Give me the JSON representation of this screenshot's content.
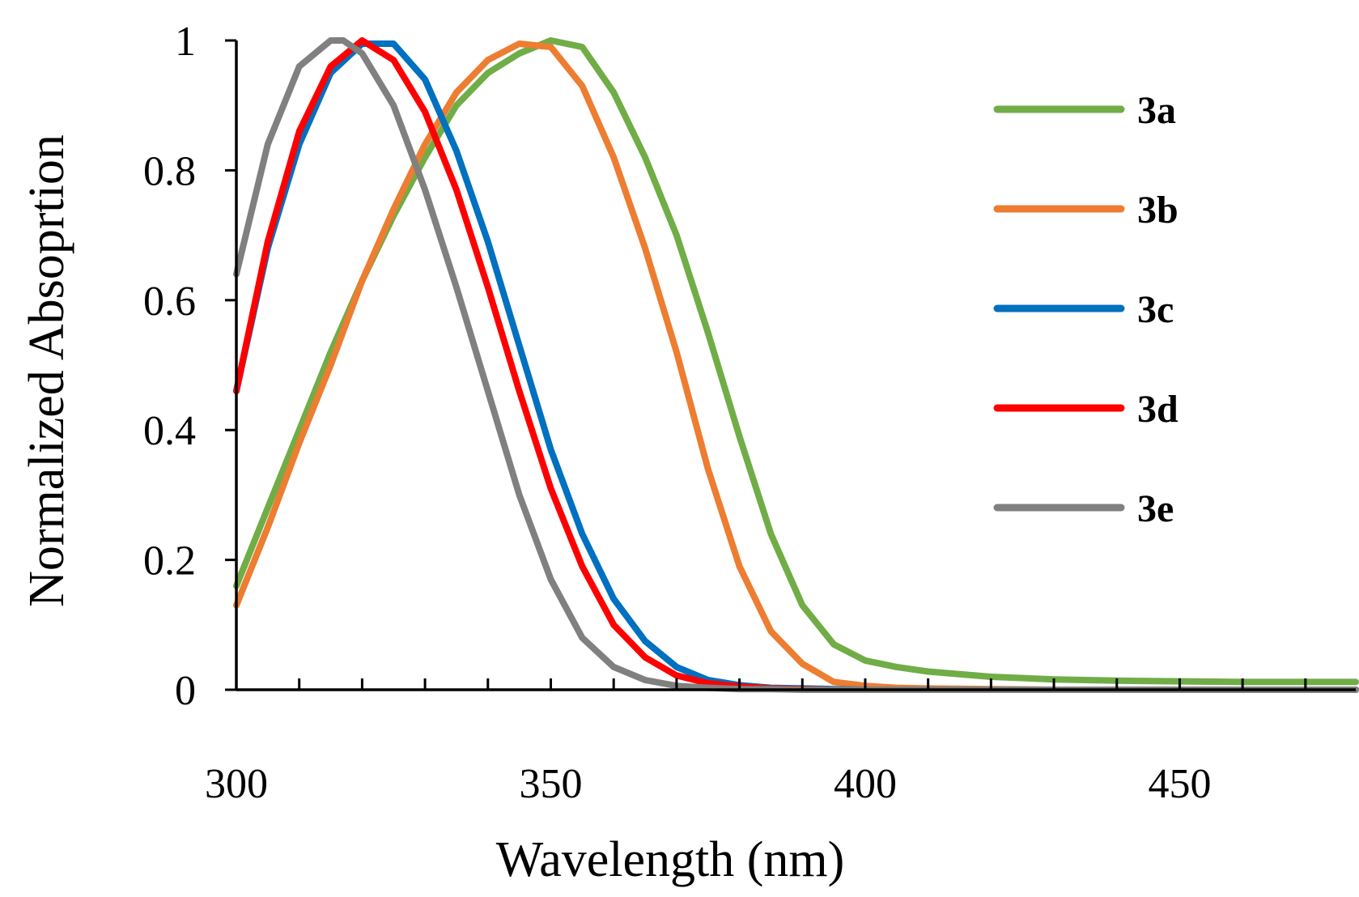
{
  "chart_data": {
    "type": "line",
    "title": "",
    "xlabel": "Wavelength (nm)",
    "ylabel": "Normalized Absoprtion",
    "xlim": [
      300,
      478
    ],
    "ylim": [
      0,
      1
    ],
    "x_ticks": [
      300,
      350,
      400,
      450
    ],
    "x_minor_step": 10,
    "y_ticks": [
      0,
      0.2,
      0.4,
      0.6,
      0.8,
      1
    ],
    "y_tick_labels": [
      "0",
      "0.2",
      "0.4",
      "0.6",
      "0.8",
      "1"
    ],
    "grid": false,
    "legend_position": "right",
    "series": [
      {
        "name": "3a",
        "color": "#70AD47",
        "x": [
          300,
          305,
          310,
          315,
          320,
          325,
          330,
          335,
          340,
          345,
          350,
          355,
          360,
          365,
          370,
          375,
          380,
          385,
          390,
          395,
          400,
          405,
          410,
          420,
          430,
          440,
          450,
          460,
          470,
          478
        ],
        "y": [
          0.16,
          0.28,
          0.4,
          0.52,
          0.63,
          0.73,
          0.82,
          0.9,
          0.95,
          0.98,
          1.0,
          0.99,
          0.92,
          0.82,
          0.7,
          0.55,
          0.39,
          0.24,
          0.13,
          0.07,
          0.045,
          0.035,
          0.028,
          0.02,
          0.016,
          0.014,
          0.013,
          0.012,
          0.012,
          0.012
        ]
      },
      {
        "name": "3b",
        "color": "#ED7D31",
        "x": [
          300,
          305,
          310,
          315,
          320,
          325,
          330,
          335,
          340,
          345,
          350,
          355,
          360,
          365,
          370,
          375,
          380,
          385,
          390,
          395,
          400,
          405,
          410,
          420,
          430,
          440,
          450,
          460,
          470,
          478
        ],
        "y": [
          0.13,
          0.25,
          0.38,
          0.5,
          0.63,
          0.74,
          0.84,
          0.92,
          0.97,
          0.995,
          0.99,
          0.93,
          0.82,
          0.68,
          0.52,
          0.34,
          0.19,
          0.09,
          0.04,
          0.012,
          0.006,
          0.003,
          0.002,
          0.001,
          0,
          0,
          0,
          0,
          0,
          0
        ]
      },
      {
        "name": "3c",
        "color": "#0070C0",
        "x": [
          300,
          305,
          310,
          315,
          320,
          325,
          330,
          335,
          340,
          345,
          350,
          355,
          360,
          365,
          370,
          375,
          380,
          385,
          390,
          395,
          400,
          410,
          420,
          430,
          440,
          450,
          460,
          470,
          478
        ],
        "y": [
          0.46,
          0.68,
          0.84,
          0.95,
          0.995,
          0.995,
          0.94,
          0.83,
          0.69,
          0.53,
          0.37,
          0.24,
          0.14,
          0.075,
          0.035,
          0.015,
          0.007,
          0.003,
          0.002,
          0.001,
          0,
          0,
          0,
          0,
          0,
          0,
          0,
          0,
          0
        ]
      },
      {
        "name": "3d",
        "color": "#FF0000",
        "x": [
          300,
          305,
          310,
          315,
          320,
          325,
          330,
          335,
          340,
          345,
          350,
          355,
          360,
          365,
          370,
          375,
          380,
          385,
          390,
          395,
          400,
          410,
          420,
          430,
          440,
          450,
          460,
          470,
          478
        ],
        "y": [
          0.46,
          0.69,
          0.86,
          0.96,
          1.0,
          0.97,
          0.89,
          0.77,
          0.62,
          0.46,
          0.31,
          0.19,
          0.1,
          0.05,
          0.022,
          0.01,
          0.005,
          0.002,
          0.001,
          0,
          0,
          0,
          0,
          0,
          0,
          0,
          0,
          0,
          0
        ]
      },
      {
        "name": "3e",
        "color": "#808080",
        "x": [
          300,
          305,
          310,
          315,
          317,
          320,
          325,
          330,
          335,
          340,
          345,
          350,
          355,
          360,
          365,
          370,
          375,
          380,
          385,
          390,
          395,
          400,
          410,
          420,
          430,
          440,
          450,
          460,
          470,
          478
        ],
        "y": [
          0.64,
          0.84,
          0.96,
          1.0,
          1.0,
          0.98,
          0.9,
          0.77,
          0.62,
          0.46,
          0.3,
          0.17,
          0.08,
          0.035,
          0.015,
          0.006,
          0.003,
          0.001,
          0.001,
          0,
          0,
          0,
          0,
          0,
          0,
          0,
          0,
          0,
          0,
          0
        ]
      }
    ]
  }
}
